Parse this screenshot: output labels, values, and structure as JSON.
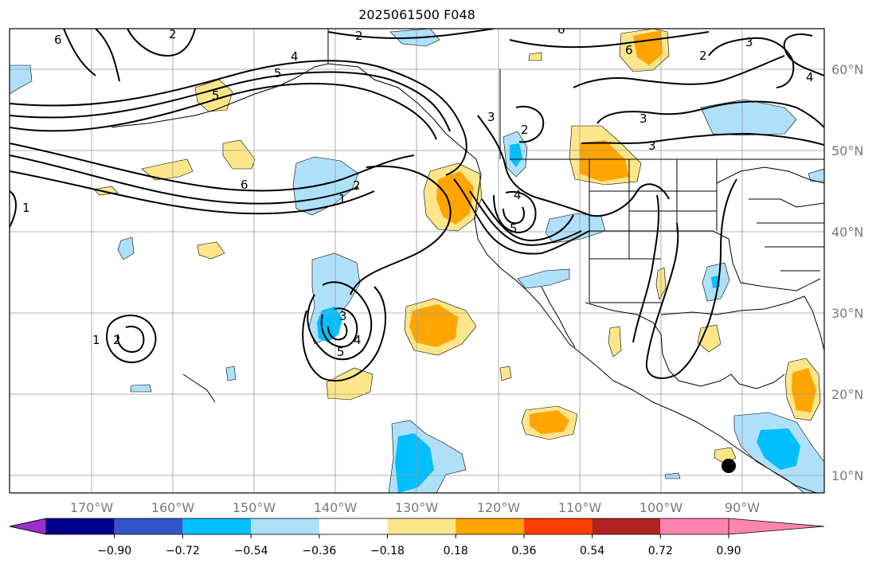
{
  "title": "2025061500 F048",
  "lon_labels": [
    "170°W",
    "160°W",
    "150°W",
    "140°W",
    "130°W",
    "120°W",
    "110°W",
    "100°W",
    "90°W"
  ],
  "lat_labels": [
    "60°N",
    "50°N",
    "40°N",
    "30°N",
    "20°N",
    "10°N"
  ],
  "colorbar": {
    "tick_labels": [
      "−0.90",
      "−0.72",
      "−0.54",
      "−0.36",
      "−0.18",
      "0.18",
      "0.36",
      "0.54",
      "0.72",
      "0.90"
    ],
    "colors": [
      "#9b30d0",
      "#00008b",
      "#3355cc",
      "#00bfff",
      "#aee0fa",
      "#ffffff",
      "#fde68a",
      "#ffa500",
      "#ff3d00",
      "#b22222",
      "#ff85b0"
    ]
  },
  "contour_labels": [
    "6",
    "2",
    "4",
    "5",
    "2",
    "6",
    "6",
    "3",
    "3",
    "2",
    "5",
    "3",
    "6",
    "1",
    "2",
    "4",
    "5",
    "1",
    "2",
    "3",
    "4",
    "5",
    "1",
    "2",
    "3",
    "4"
  ],
  "marker": "black-dot"
}
